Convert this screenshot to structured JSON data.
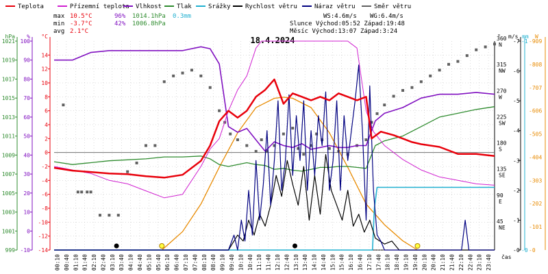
{
  "title": "18.4.2024",
  "legend": [
    {
      "label": "Teplota",
      "color": "#e8000b"
    },
    {
      "label": "Přízemní teplota",
      "color": "#d020d0"
    },
    {
      "label": "Vlhkost",
      "color": "#8010c0"
    },
    {
      "label": "Tlak",
      "color": "#2e8b2e"
    },
    {
      "label": "Srážky",
      "color": "#20b0d0"
    },
    {
      "label": "Rychlost větru",
      "color": "#000000"
    },
    {
      "label": "Náraz větru",
      "color": "#000080"
    },
    {
      "label": "Směr větru",
      "color": "#606060"
    }
  ],
  "stats": {
    "max_label": "max",
    "max_temp": "10.5°C",
    "max_hum": "96%",
    "max_press": "1014.1hPa",
    "max_rain": "0.3mm",
    "min_label": "min",
    "min_temp": "-3.7°C",
    "min_hum": "42%",
    "min_press": "1006.8hPa",
    "avg_label": "avg",
    "avg_temp": "2.1°C",
    "ws": "WS:4.6m/s",
    "wg": "WG:6.4m/s",
    "sun_line": "Slunce Východ:05:52  Západ:19:48",
    "moon_line": "Měsíc  Východ:13:07  Západ:3:24"
  },
  "colors": {
    "temp": "#e8000b",
    "ground": "#d020d0",
    "hum": "#8010c0",
    "press": "#2e8b2e",
    "rain": "#20b0d0",
    "speed": "#000000",
    "gust": "#000080",
    "dir": "#606060",
    "solar": "#e88a00",
    "grid": "#b8b8b8"
  },
  "chart_data": {
    "type": "line",
    "title": "18.4.2024",
    "x_unit_label": "čas",
    "x_ticks": [
      "00:10",
      "00:40",
      "01:10",
      "01:40",
      "02:10",
      "02:40",
      "03:10",
      "03:40",
      "04:10",
      "04:40",
      "05:10",
      "05:40",
      "06:10",
      "06:40",
      "07:10",
      "07:40",
      "08:10",
      "08:40",
      "09:10",
      "09:40",
      "10:10",
      "10:40",
      "11:10",
      "11:40",
      "12:10",
      "12:40",
      "13:10",
      "13:40",
      "14:10",
      "14:40",
      "15:10",
      "15:40",
      "16:10",
      "16:40",
      "17:10",
      "17:40",
      "18:10",
      "18:40",
      "19:10",
      "19:40",
      "20:10",
      "20:40",
      "21:10",
      "21:40",
      "22:10",
      "22:40",
      "23:10",
      "23:40"
    ],
    "axes": {
      "pressure": {
        "label": "hPa",
        "color": "#2e8b2e",
        "range": [
          999,
          1021
        ],
        "ticks": [
          999,
          1001,
          1003,
          1005,
          1007,
          1009,
          1011,
          1013,
          1015,
          1017,
          1019,
          1021
        ]
      },
      "humidity": {
        "label": "%",
        "color": "#8010c0",
        "range": [
          -10,
          100
        ],
        "ticks": [
          -10,
          0,
          10,
          20,
          30,
          40,
          50,
          60,
          70,
          80,
          90,
          100
        ]
      },
      "temperature": {
        "label": "°C",
        "color": "#e8000b",
        "range": [
          -14,
          16
        ],
        "ticks": [
          -14,
          -12,
          -10,
          -8,
          -6,
          -4,
          -2,
          0,
          2,
          4,
          6,
          8,
          10,
          12,
          14
        ]
      },
      "direction": {
        "label": "°",
        "range": [
          0,
          360
        ],
        "ticks": [
          {
            "v": 45,
            "t": "45",
            "c": "NE"
          },
          {
            "v": 90,
            "t": "90",
            "c": "E"
          },
          {
            "v": 135,
            "t": "135",
            "c": "SE"
          },
          {
            "v": 180,
            "t": "180",
            "c": "S"
          },
          {
            "v": 225,
            "t": "225",
            "c": "SW"
          },
          {
            "v": 270,
            "t": "270",
            "c": "W"
          },
          {
            "v": 315,
            "t": "315",
            "c": "NW"
          },
          {
            "v": 360,
            "t": "360",
            "c": "N"
          }
        ]
      },
      "wind": {
        "label": "m/s",
        "range": [
          0,
          7
        ],
        "ticks": [
          0,
          1,
          2,
          3,
          4,
          5,
          6,
          7
        ]
      },
      "rain": {
        "label": "mm",
        "range": [
          0,
          1
        ],
        "ticks": [
          0,
          1
        ]
      },
      "solar": {
        "label": "W",
        "color": "#e88a00",
        "range": [
          0,
          909
        ],
        "ticks": [
          0,
          101,
          202,
          303,
          404,
          505,
          606,
          707,
          808,
          909
        ]
      }
    },
    "series": [
      {
        "name": "Teplota",
        "unit": "°C",
        "x": [
          0,
          1,
          2,
          3,
          4,
          5,
          6,
          7,
          8,
          8.5,
          9,
          9.5,
          10,
          10.5,
          11,
          11.5,
          12,
          12.5,
          13,
          13.5,
          14,
          14.5,
          15,
          15.5,
          16,
          16.5,
          17,
          17.3,
          17.8,
          18.5,
          19,
          19.5,
          20,
          21,
          22,
          23,
          24
        ],
        "values": [
          -2.2,
          -2.6,
          -2.8,
          -3.0,
          -3.1,
          -3.4,
          -3.6,
          -3.2,
          -1.2,
          1.0,
          4.5,
          6.0,
          5.0,
          6.0,
          8.0,
          9.0,
          10.5,
          7.0,
          8.5,
          8.0,
          7.5,
          8.0,
          7.5,
          8.5,
          8.0,
          7.5,
          8.0,
          2.0,
          3.0,
          2.5,
          2.0,
          1.5,
          1.2,
          0.8,
          -0.2,
          -0.2,
          -0.5
        ]
      },
      {
        "name": "Přízemní teplota",
        "unit": "°C",
        "x": [
          0,
          1,
          2,
          3,
          4,
          5,
          6,
          7,
          8,
          8.5,
          9,
          9.5,
          10,
          10.5,
          11,
          11.3,
          11.6,
          12,
          12.3,
          12.6,
          13,
          13.5,
          14,
          14.5,
          15,
          15.5,
          16,
          16.5,
          17,
          17.4,
          18,
          19,
          20,
          21,
          22,
          23,
          24
        ],
        "values": [
          -2.0,
          -2.5,
          -3.0,
          -4.0,
          -4.5,
          -5.5,
          -6.5,
          -6.0,
          -2.0,
          0.5,
          2.0,
          6.0,
          9.0,
          11.0,
          15.0,
          20.0,
          17.0,
          21.0,
          16.0,
          22.0,
          24.0,
          20.0,
          22.0,
          20.0,
          18.0,
          21.0,
          17.0,
          15.0,
          6.0,
          3.0,
          1.0,
          -1.0,
          -2.5,
          -3.5,
          -4.0,
          -4.5,
          -4.7
        ]
      },
      {
        "name": "Vlhkost",
        "unit": "%",
        "x": [
          0,
          1,
          2,
          3,
          4,
          5,
          6,
          7,
          8,
          8.5,
          9,
          9.5,
          10,
          10.5,
          11,
          11.5,
          12,
          12.5,
          13,
          13.5,
          14,
          14.5,
          15,
          15.5,
          16,
          16.5,
          17,
          17.5,
          18,
          19,
          20,
          21,
          22,
          23,
          24
        ],
        "values": [
          90,
          90,
          94,
          95,
          95,
          95,
          95,
          95,
          97,
          96,
          88,
          55,
          52,
          54,
          48,
          42,
          47,
          45,
          44,
          46,
          43,
          44,
          45,
          44,
          44,
          45,
          45,
          58,
          62,
          65,
          70,
          72,
          72,
          73,
          72
        ]
      },
      {
        "name": "Tlak",
        "unit": "hPa",
        "x": [
          0,
          1,
          2,
          3,
          4,
          5,
          6,
          7,
          8,
          8.5,
          9,
          9.5,
          10,
          10.5,
          11,
          11.5,
          12,
          12.5,
          13,
          13.5,
          14,
          14.5,
          15,
          15.5,
          16,
          16.5,
          17,
          17.5,
          18,
          19,
          20,
          21,
          22,
          23,
          24
        ],
        "values": [
          1008.3,
          1008.0,
          1008.2,
          1008.4,
          1008.5,
          1008.6,
          1008.8,
          1008.8,
          1008.9,
          1008.6,
          1008.0,
          1007.8,
          1008.0,
          1008.2,
          1008.0,
          1007.9,
          1007.5,
          1007.6,
          1007.4,
          1007.3,
          1007.5,
          1007.7,
          1007.7,
          1007.8,
          1007.8,
          1007.7,
          1007.6,
          1010.0,
          1010.5,
          1011.0,
          1012.0,
          1013.0,
          1013.4,
          1013.8,
          1014.1
        ]
      },
      {
        "name": "Srážky",
        "unit": "mm",
        "x": [
          0,
          17.35,
          17.45,
          17.6,
          24
        ],
        "values": [
          0,
          0,
          0.2,
          0.3,
          0.3
        ]
      },
      {
        "name": "Rychlost větru",
        "unit": "m/s",
        "x": [
          0,
          6,
          9.5,
          10,
          10.3,
          10.6,
          10.9,
          11.2,
          11.5,
          11.8,
          12.1,
          12.4,
          12.7,
          13.0,
          13.3,
          13.6,
          13.9,
          14.2,
          14.5,
          14.8,
          15.1,
          15.4,
          15.7,
          16.0,
          16.3,
          16.6,
          16.9,
          17.2,
          17.5,
          18.0,
          18.4,
          18.8,
          20,
          21,
          22,
          23,
          24
        ],
        "values": [
          0,
          0,
          0,
          0.5,
          0.3,
          1.0,
          0.5,
          1.2,
          0.8,
          1.5,
          2.5,
          1.8,
          3.0,
          2.2,
          1.5,
          2.8,
          1.0,
          2.5,
          1.2,
          3.2,
          2.0,
          1.5,
          1.0,
          2.0,
          0.8,
          1.2,
          0.6,
          1.0,
          0.4,
          0.2,
          0.3,
          0,
          0,
          0,
          0,
          0,
          0
        ]
      },
      {
        "name": "Náraz větru",
        "unit": "m/s",
        "x": [
          0,
          9.5,
          9.8,
          10.0,
          10.2,
          10.4,
          10.6,
          10.8,
          11.0,
          11.2,
          11.4,
          11.6,
          11.8,
          12.0,
          12.2,
          12.4,
          12.6,
          12.8,
          13.0,
          13.2,
          13.4,
          13.6,
          13.8,
          14.0,
          14.2,
          14.4,
          14.6,
          14.8,
          15.0,
          15.2,
          15.4,
          15.6,
          15.8,
          16.0,
          16.2,
          16.4,
          16.6,
          16.8,
          17.0,
          17.2,
          17.4,
          17.6,
          17.8,
          18.0,
          20,
          22.2,
          22.4,
          22.6,
          24
        ],
        "values": [
          0,
          0,
          0.5,
          0,
          1.0,
          0.3,
          2.0,
          0.5,
          3.0,
          1.0,
          2.2,
          4.0,
          1.5,
          3.0,
          5.0,
          2.0,
          3.0,
          5.2,
          2.5,
          4.5,
          3.0,
          5.0,
          2.0,
          4.0,
          2.5,
          4.5,
          3.5,
          5.3,
          2.0,
          3.0,
          5.0,
          2.0,
          4.5,
          3.0,
          4.0,
          5.0,
          6.2,
          4.0,
          1.0,
          5.5,
          2.0,
          0.5,
          0.3,
          0,
          0,
          0,
          1.0,
          0,
          0
        ]
      },
      {
        "name": "Slunce",
        "unit": "W",
        "x": [
          5.87,
          7,
          8,
          9,
          10,
          11,
          12,
          12.5,
          13,
          14,
          15,
          16,
          17,
          18,
          19,
          19.8
        ],
        "values": [
          0,
          80,
          200,
          360,
          510,
          620,
          660,
          665,
          660,
          620,
          510,
          360,
          200,
          110,
          40,
          0
        ]
      }
    ],
    "direction_points": [
      [
        0.5,
        250
      ],
      [
        1.3,
        100
      ],
      [
        1.5,
        100
      ],
      [
        1.8,
        100
      ],
      [
        2,
        100
      ],
      [
        2.5,
        60
      ],
      [
        3,
        60
      ],
      [
        3.5,
        60
      ],
      [
        4,
        135
      ],
      [
        4.5,
        150
      ],
      [
        5,
        180
      ],
      [
        5.5,
        180
      ],
      [
        6,
        290
      ],
      [
        6.5,
        300
      ],
      [
        7,
        305
      ],
      [
        7.5,
        310
      ],
      [
        8,
        300
      ],
      [
        8.5,
        280
      ],
      [
        9,
        240
      ],
      [
        9.3,
        220
      ],
      [
        9.6,
        200
      ],
      [
        10,
        190
      ],
      [
        10.5,
        180
      ],
      [
        11,
        170
      ],
      [
        11.3,
        190
      ],
      [
        11.6,
        170
      ],
      [
        12,
        180
      ],
      [
        12.5,
        200
      ],
      [
        13,
        210
      ],
      [
        13.3,
        175
      ],
      [
        13.6,
        165
      ],
      [
        14,
        180
      ],
      [
        14.3,
        200
      ],
      [
        14.6,
        190
      ],
      [
        15,
        175
      ],
      [
        15.5,
        170
      ],
      [
        16,
        165
      ],
      [
        16.5,
        180
      ],
      [
        17,
        190
      ],
      [
        17.3,
        220
      ],
      [
        17.6,
        235
      ],
      [
        18,
        250
      ],
      [
        18.5,
        265
      ],
      [
        19,
        275
      ],
      [
        19.5,
        280
      ],
      [
        20,
        290
      ],
      [
        20.5,
        300
      ],
      [
        21,
        310
      ],
      [
        21.5,
        320
      ],
      [
        22,
        325
      ],
      [
        22.5,
        335
      ],
      [
        23,
        345
      ],
      [
        23.5,
        350
      ],
      [
        24,
        355
      ]
    ]
  }
}
